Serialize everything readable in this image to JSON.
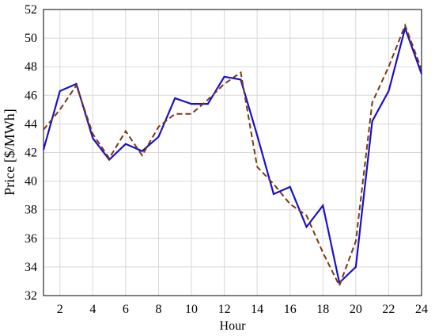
{
  "chart_data": {
    "type": "line",
    "x_label": "Hour",
    "y_label": "Price [$/MWh]",
    "x": [
      1,
      2,
      3,
      4,
      5,
      6,
      7,
      8,
      9,
      10,
      11,
      12,
      13,
      14,
      15,
      16,
      17,
      18,
      19,
      20,
      21,
      22,
      23,
      24
    ],
    "series": [
      {
        "color": "#1a10c8",
        "dash": false,
        "values": [
          42.2,
          46.3,
          46.8,
          43.0,
          41.5,
          42.6,
          42.1,
          43.1,
          45.8,
          45.4,
          45.4,
          47.3,
          47.1,
          43.2,
          39.1,
          39.6,
          36.8,
          38.3,
          32.9,
          34.0,
          44.2,
          46.3,
          50.7,
          47.5
        ]
      },
      {
        "color": "#7a3a10",
        "dash": true,
        "values": [
          43.6,
          45.0,
          46.7,
          43.3,
          41.6,
          43.5,
          41.8,
          43.8,
          44.7,
          44.7,
          45.7,
          46.8,
          47.6,
          41.0,
          39.8,
          38.4,
          37.6,
          35.0,
          32.7,
          35.8,
          45.5,
          48.0,
          50.9,
          47.8
        ]
      }
    ],
    "xlim": [
      1,
      24
    ],
    "xticks": [
      2,
      4,
      6,
      8,
      10,
      12,
      14,
      16,
      18,
      20,
      22,
      24
    ],
    "ylim": [
      32,
      52
    ],
    "yticks": [
      32,
      34,
      36,
      38,
      40,
      42,
      44,
      46,
      48,
      50,
      52
    ],
    "grid": true
  }
}
